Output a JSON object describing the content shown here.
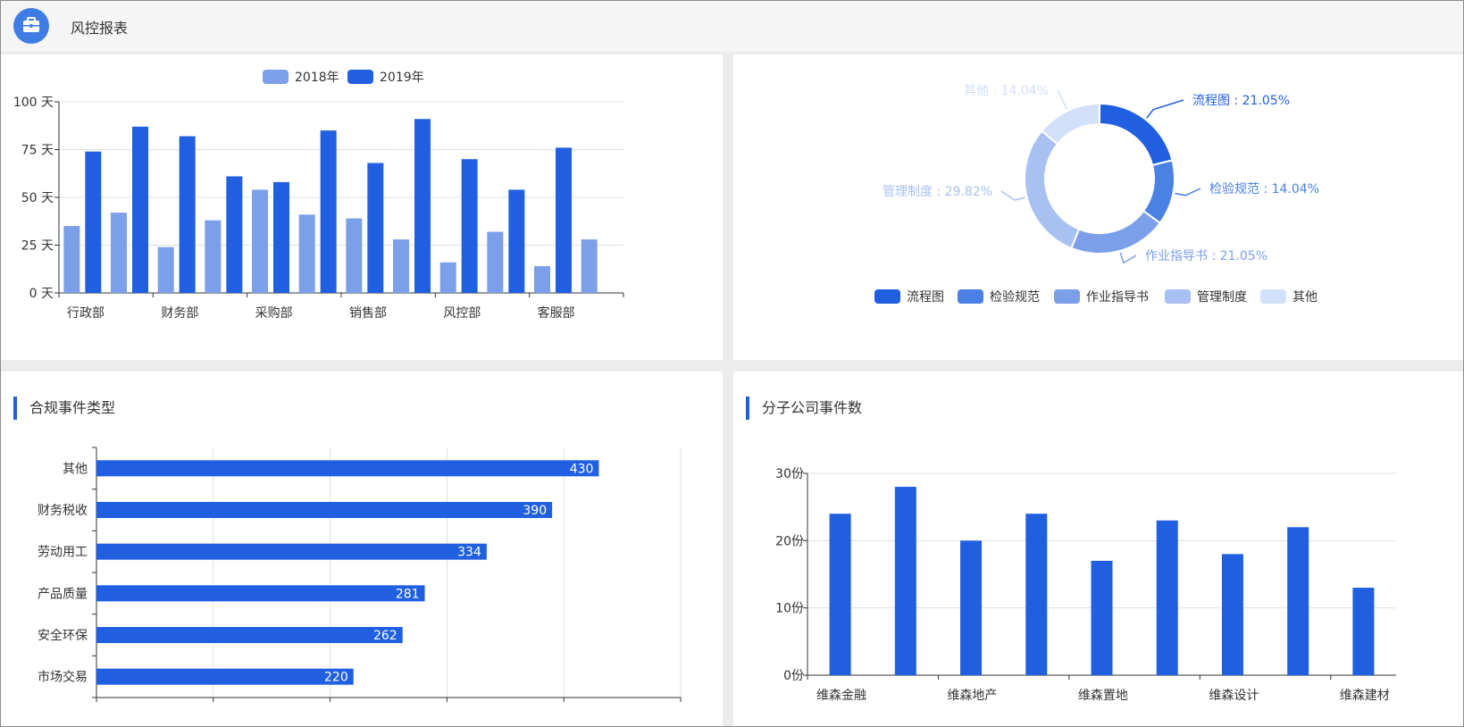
{
  "app": {
    "title": "风控报表"
  },
  "colors": {
    "bar_dark": "#2060e0",
    "bar_light": "#7c9fea",
    "pie": [
      "#2060e0",
      "#4b80e5",
      "#7c9fea",
      "#a8c0f2",
      "#d3e0f9"
    ],
    "axis": "#333333",
    "grid": "#e0e0e0"
  },
  "icons": {
    "logo": "briefcase-icon"
  },
  "charts": {
    "dept": {
      "type": "bar",
      "legend": [
        "2018年",
        "2019年"
      ],
      "y_unit": " 天",
      "ylim": [
        0,
        100
      ],
      "yticks": [
        0,
        25,
        50,
        75,
        100
      ],
      "xlabels": [
        "行政部",
        "财务部",
        "采购部",
        "销售部",
        "风控部",
        "客服部"
      ],
      "series": [
        {
          "name": "2018年",
          "values": [
            35,
            42,
            24,
            38,
            54,
            41,
            39,
            28,
            16,
            32,
            14,
            28
          ]
        },
        {
          "name": "2019年",
          "values": [
            74,
            87,
            82,
            61,
            58,
            85,
            68,
            91,
            70,
            54,
            76
          ]
        }
      ]
    },
    "doc_pie": {
      "type": "pie",
      "legend": [
        "流程图",
        "检验规范",
        "作业指导书",
        "管理制度",
        "其他"
      ],
      "labels": [
        "流程图 : 21.05%",
        "检验规范 : 14.04%",
        "作业指导书 : 21.05%",
        "管理制度 : 29.82%",
        "其他 : 14.04%"
      ],
      "values": [
        21.05,
        14.04,
        21.05,
        29.82,
        14.04
      ]
    },
    "compliance": {
      "title": "合规事件类型",
      "type": "bar",
      "categories": [
        "其他",
        "财务税收",
        "劳动用工",
        "产品质量",
        "安全环保",
        "市场交易"
      ],
      "values": [
        430,
        390,
        334,
        281,
        262,
        220
      ],
      "xlim": [
        0,
        500
      ]
    },
    "subsidiary": {
      "title": "分子公司事件数",
      "type": "bar",
      "y_unit": "份",
      "ylim": [
        0,
        30
      ],
      "yticks": [
        0,
        10,
        20,
        30
      ],
      "xlabels": [
        "维森金融",
        "维森地产",
        "维森置地",
        "维森设计",
        "维森建材"
      ],
      "values": [
        24,
        28,
        20,
        24,
        17,
        23,
        18,
        22,
        13
      ]
    }
  }
}
